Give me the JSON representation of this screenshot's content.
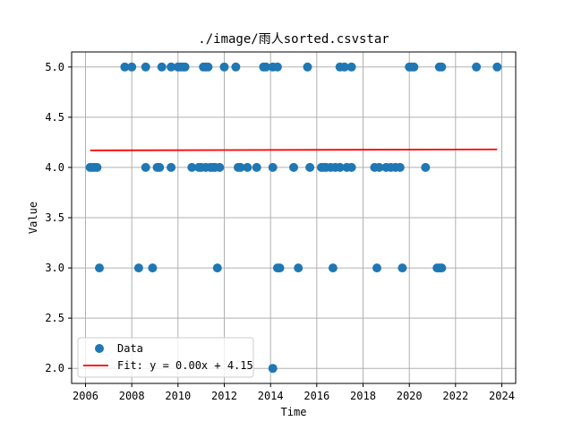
{
  "chart_data": {
    "type": "scatter",
    "title": "./image/雨人sorted.csvstar",
    "xlabel": "Time",
    "ylabel": "Value",
    "xlim": [
      2005.4,
      2024.6
    ],
    "ylim": [
      1.85,
      5.15
    ],
    "xticks": [
      2006,
      2008,
      2010,
      2012,
      2014,
      2016,
      2018,
      2020,
      2022,
      2024
    ],
    "xtick_labels": [
      "2006",
      "2008",
      "2010",
      "2012",
      "2014",
      "2016",
      "2018",
      "2020",
      "2022",
      "2024"
    ],
    "yticks": [
      2.0,
      2.5,
      3.0,
      3.5,
      4.0,
      4.5,
      5.0
    ],
    "ytick_labels": [
      "2.0",
      "2.5",
      "3.0",
      "3.5",
      "4.0",
      "4.5",
      "5.0"
    ],
    "grid": true,
    "legend": {
      "placement": "lower-left",
      "entries": [
        {
          "label": "Data",
          "kind": "marker",
          "color": "#1f77b4"
        },
        {
          "label": "Fit: y = 0.00x + 4.15",
          "kind": "line",
          "color": "#ff0000"
        }
      ]
    },
    "series": [
      {
        "name": "Data",
        "color": "#1f77b4",
        "points": [
          [
            2006.2,
            4.0
          ],
          [
            2006.3,
            4.0
          ],
          [
            2006.4,
            4.0
          ],
          [
            2006.5,
            4.0
          ],
          [
            2006.6,
            3.0
          ],
          [
            2007.7,
            5.0
          ],
          [
            2008.0,
            5.0
          ],
          [
            2008.3,
            3.0
          ],
          [
            2008.6,
            5.0
          ],
          [
            2008.6,
            4.0
          ],
          [
            2008.9,
            3.0
          ],
          [
            2009.1,
            4.0
          ],
          [
            2009.2,
            4.0
          ],
          [
            2009.3,
            5.0
          ],
          [
            2009.7,
            4.0
          ],
          [
            2009.7,
            5.0
          ],
          [
            2010.0,
            5.0
          ],
          [
            2010.1,
            5.0
          ],
          [
            2010.2,
            5.0
          ],
          [
            2010.3,
            5.0
          ],
          [
            2010.6,
            4.0
          ],
          [
            2010.9,
            4.0
          ],
          [
            2011.0,
            4.0
          ],
          [
            2011.1,
            5.0
          ],
          [
            2011.2,
            4.0
          ],
          [
            2011.2,
            5.0
          ],
          [
            2011.3,
            5.0
          ],
          [
            2011.4,
            4.0
          ],
          [
            2011.5,
            4.0
          ],
          [
            2011.6,
            4.0
          ],
          [
            2011.7,
            3.0
          ],
          [
            2011.8,
            4.0
          ],
          [
            2012.0,
            5.0
          ],
          [
            2012.5,
            5.0
          ],
          [
            2012.6,
            4.0
          ],
          [
            2012.7,
            4.0
          ],
          [
            2013.0,
            4.0
          ],
          [
            2013.4,
            4.0
          ],
          [
            2013.7,
            5.0
          ],
          [
            2013.8,
            5.0
          ],
          [
            2014.1,
            2.0
          ],
          [
            2014.1,
            4.0
          ],
          [
            2014.1,
            5.0
          ],
          [
            2014.3,
            5.0
          ],
          [
            2014.3,
            3.0
          ],
          [
            2014.4,
            3.0
          ],
          [
            2015.0,
            4.0
          ],
          [
            2015.2,
            3.0
          ],
          [
            2015.6,
            5.0
          ],
          [
            2015.7,
            4.0
          ],
          [
            2016.2,
            4.0
          ],
          [
            2016.3,
            4.0
          ],
          [
            2016.4,
            4.0
          ],
          [
            2016.6,
            4.0
          ],
          [
            2016.7,
            3.0
          ],
          [
            2016.8,
            4.0
          ],
          [
            2017.0,
            5.0
          ],
          [
            2017.0,
            4.0
          ],
          [
            2017.2,
            5.0
          ],
          [
            2017.3,
            4.0
          ],
          [
            2017.5,
            5.0
          ],
          [
            2017.5,
            4.0
          ],
          [
            2018.5,
            4.0
          ],
          [
            2018.6,
            3.0
          ],
          [
            2018.7,
            4.0
          ],
          [
            2019.0,
            4.0
          ],
          [
            2019.2,
            4.0
          ],
          [
            2019.4,
            4.0
          ],
          [
            2019.6,
            4.0
          ],
          [
            2019.7,
            3.0
          ],
          [
            2020.0,
            5.0
          ],
          [
            2020.1,
            5.0
          ],
          [
            2020.2,
            5.0
          ],
          [
            2020.7,
            4.0
          ],
          [
            2021.2,
            3.0
          ],
          [
            2021.3,
            5.0
          ],
          [
            2021.3,
            3.0
          ],
          [
            2021.4,
            5.0
          ],
          [
            2021.4,
            3.0
          ],
          [
            2022.9,
            5.0
          ],
          [
            2023.8,
            5.0
          ]
        ]
      }
    ],
    "fit": {
      "name": "Fit: y = 0.00x + 4.15",
      "color": "#ff0000",
      "x": [
        2006.2,
        2023.8
      ],
      "y": [
        4.17,
        4.18
      ]
    }
  }
}
